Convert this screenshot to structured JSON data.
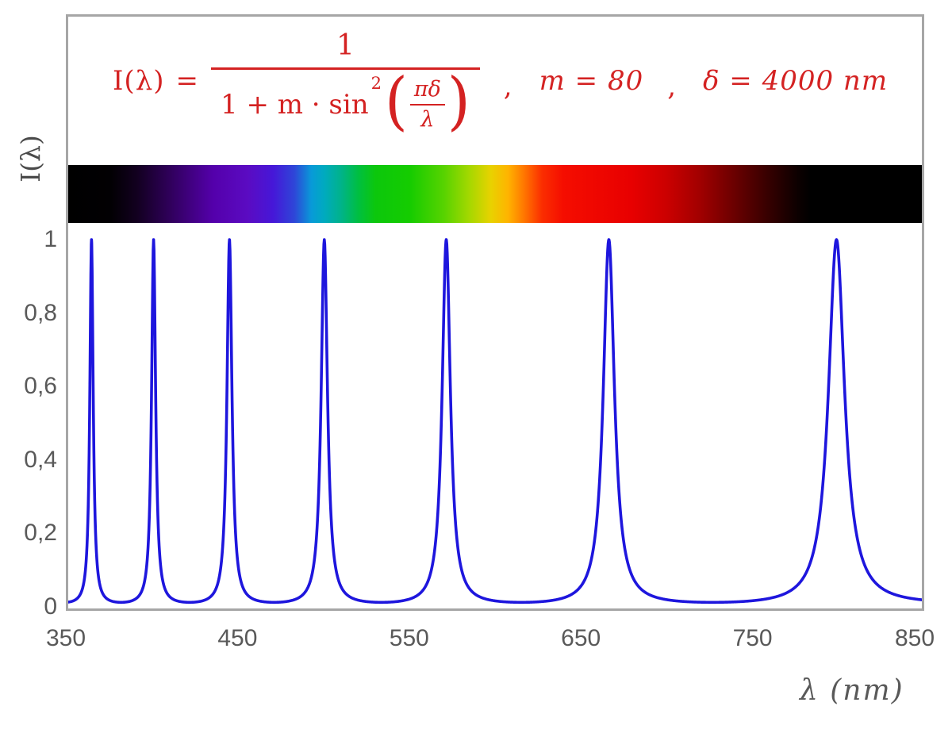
{
  "formula": {
    "lhs": "I(λ)",
    "equals": "=",
    "numerator": "1",
    "denominator_prefix": "1 + m · sin",
    "denominator_exponent": "2",
    "open_paren": "(",
    "close_paren": ")",
    "inner_numerator": "πδ",
    "inner_denominator": "λ",
    "comma_1": ",",
    "param_m": "m = 80",
    "comma_2": ",",
    "param_delta": "δ = 4000 nm",
    "color": "#d42222"
  },
  "chart_data": {
    "type": "line",
    "formula_text": "I(λ) = 1 / (1 + m·sin²(πδ/λ)) , m = 80 , δ = 4000 nm",
    "params": {
      "m": 80,
      "delta_nm": 4000
    },
    "x_axis": {
      "label": "λ  (nm)",
      "min": 350,
      "max": 850,
      "ticks": [
        350,
        450,
        550,
        650,
        750,
        850
      ],
      "tick_labels": [
        "350",
        "450",
        "550",
        "650",
        "750",
        "850"
      ]
    },
    "y_axis": {
      "label": "I(λ)",
      "min": 0,
      "max": 1,
      "ticks": [
        0,
        0.2,
        0.4,
        0.6,
        0.8,
        1
      ],
      "tick_labels": [
        "0",
        "0,2",
        "0,4",
        "0,6",
        "0,8",
        "1"
      ]
    },
    "peaks_nm": [
      363.6,
      400,
      444.4,
      500,
      571.4,
      666.7,
      800
    ],
    "peak_value": 1,
    "baseline_value": 0.0123,
    "curve_color": "#1e16dd",
    "grid": false,
    "legend": false,
    "spectrum_bar": {
      "description": "visible-light spectrum strip aligned to wavelength axis, black outside ~380–780 nm",
      "stops": [
        {
          "pos": 0,
          "color": "#000000"
        },
        {
          "pos": 5,
          "color": "#020003"
        },
        {
          "pos": 8,
          "color": "#12001f"
        },
        {
          "pos": 12,
          "color": "#30005c"
        },
        {
          "pos": 17,
          "color": "#5400ab"
        },
        {
          "pos": 21,
          "color": "#5b0bc2"
        },
        {
          "pos": 24,
          "color": "#4617d8"
        },
        {
          "pos": 26.5,
          "color": "#2e46d8"
        },
        {
          "pos": 28.5,
          "color": "#089ad8"
        },
        {
          "pos": 30,
          "color": "#00aabf"
        },
        {
          "pos": 32,
          "color": "#00b389"
        },
        {
          "pos": 34,
          "color": "#00bf40"
        },
        {
          "pos": 36,
          "color": "#0cc70c"
        },
        {
          "pos": 40,
          "color": "#15cc00"
        },
        {
          "pos": 44,
          "color": "#57d300"
        },
        {
          "pos": 47,
          "color": "#a5d800"
        },
        {
          "pos": 49.5,
          "color": "#e8d200"
        },
        {
          "pos": 51.5,
          "color": "#ffb400"
        },
        {
          "pos": 53.5,
          "color": "#ff7300"
        },
        {
          "pos": 55.5,
          "color": "#fb2e00"
        },
        {
          "pos": 58,
          "color": "#f50d00"
        },
        {
          "pos": 66,
          "color": "#e80000"
        },
        {
          "pos": 70,
          "color": "#cc0000"
        },
        {
          "pos": 74,
          "color": "#a10000"
        },
        {
          "pos": 78,
          "color": "#6b0000"
        },
        {
          "pos": 82,
          "color": "#360000"
        },
        {
          "pos": 85.5,
          "color": "#0c0000"
        },
        {
          "pos": 87,
          "color": "#000000"
        },
        {
          "pos": 100,
          "color": "#000000"
        }
      ]
    }
  },
  "axes_style": {
    "text_color": "#595959",
    "border_color": "#a6a6a6"
  }
}
